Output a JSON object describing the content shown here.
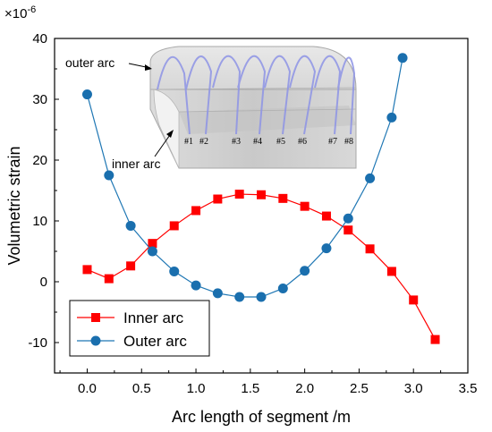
{
  "chart_data": {
    "type": "line",
    "xlabel": "Arc length of segment /m",
    "ylabel": "Volumetric strain",
    "y_multiplier": "×10",
    "y_exponent": "-6",
    "xlim": [
      -0.3,
      3.5
    ],
    "ylim": [
      -15,
      40
    ],
    "xticks": [
      0.0,
      0.5,
      1.0,
      1.5,
      2.0,
      2.5,
      3.0,
      3.5
    ],
    "xtick_labels": [
      "0.0",
      "0.5",
      "1.0",
      "1.5",
      "2.0",
      "2.5",
      "3.0",
      "3.5"
    ],
    "yticks": [
      -10,
      0,
      10,
      20,
      30,
      40
    ],
    "ytick_labels": [
      "-10",
      "0",
      "10",
      "20",
      "30",
      "40"
    ],
    "legend_position": "bottom-left",
    "series": [
      {
        "name": "Inner arc",
        "color": "#ff0000",
        "marker": "square",
        "x": [
          0.0,
          0.2,
          0.4,
          0.6,
          0.8,
          1.0,
          1.2,
          1.4,
          1.6,
          1.8,
          2.0,
          2.2,
          2.4,
          2.6,
          2.8,
          3.0,
          3.2
        ],
        "y": [
          2.0,
          0.5,
          2.6,
          6.3,
          9.2,
          11.7,
          13.6,
          14.4,
          14.3,
          13.7,
          12.4,
          10.8,
          8.5,
          5.4,
          1.7,
          -3.0,
          -9.5
        ]
      },
      {
        "name": "Outer arc",
        "color": "#1f77b4",
        "marker": "circle",
        "x": [
          0.0,
          0.2,
          0.4,
          0.6,
          0.8,
          1.0,
          1.2,
          1.4,
          1.6,
          1.8,
          2.0,
          2.2,
          2.4,
          2.6,
          2.8,
          2.9
        ],
        "y": [
          30.8,
          17.5,
          9.2,
          5.0,
          1.7,
          -0.6,
          -1.9,
          -2.5,
          -2.5,
          -1.1,
          1.8,
          5.5,
          10.4,
          17.0,
          27.0,
          36.8
        ]
      }
    ]
  },
  "inset": {
    "outer_label": "outer arc",
    "inner_label": "inner arc",
    "markers": [
      "#1",
      "#2",
      "#3",
      "#4",
      "#5",
      "#6",
      "#7",
      "#8"
    ]
  }
}
